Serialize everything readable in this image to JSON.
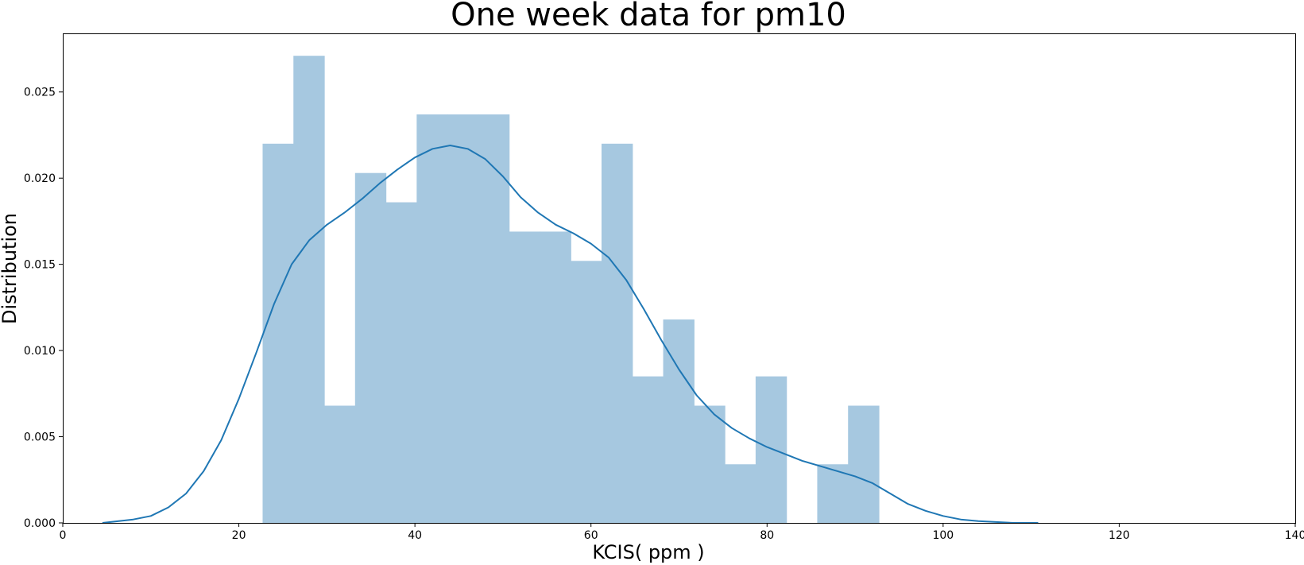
{
  "chart_data": {
    "type": "bar",
    "title": "One week data for pm10",
    "xlabel": "KCIS( ppm )",
    "ylabel": "Distribution",
    "xlim": [
      0,
      140
    ],
    "ylim": [
      0,
      0.0284
    ],
    "xticks": [
      "0",
      "20",
      "40",
      "60",
      "80",
      "100",
      "120",
      "140"
    ],
    "yticks": [
      "0.000",
      "0.005",
      "0.010",
      "0.015",
      "0.020",
      "0.025"
    ],
    "grid": false,
    "bar_color": "#a6c8e0",
    "line_color": "#1f77b4",
    "histogram": {
      "bin_edges": [
        22.7,
        26.2,
        29.7,
        33.2,
        36.7,
        40.2,
        43.7,
        47.2,
        50.7,
        54.2,
        57.7,
        61.2,
        64.7,
        68.2,
        71.7,
        75.2,
        78.7,
        82.2,
        85.7,
        89.2,
        92.7
      ],
      "density": [
        0.022,
        0.0271,
        0.0068,
        0.0203,
        0.0186,
        0.0237,
        0.0237,
        0.0237,
        0.0169,
        0.0169,
        0.0152,
        0.022,
        0.0085,
        0.0118,
        0.0068,
        0.0034,
        0.0085,
        0.0,
        0.0034,
        0.0068
      ]
    },
    "kde": {
      "x": [
        4.5,
        8,
        10,
        12,
        14,
        16,
        18,
        20,
        22,
        24,
        26,
        28,
        30,
        32,
        34,
        36,
        38,
        40,
        42,
        44,
        46,
        48,
        50,
        52,
        54,
        56,
        58,
        60,
        62,
        64,
        66,
        68,
        70,
        72,
        74,
        76,
        78,
        80,
        82,
        84,
        86,
        88,
        90,
        92,
        94,
        96,
        98,
        100,
        102,
        104,
        106,
        108,
        110.8
      ],
      "y": [
        0.0,
        0.0002,
        0.0004,
        0.0009,
        0.0017,
        0.003,
        0.0048,
        0.0072,
        0.0099,
        0.0127,
        0.015,
        0.0164,
        0.0173,
        0.018,
        0.0188,
        0.0197,
        0.0205,
        0.0212,
        0.0217,
        0.0219,
        0.0217,
        0.0211,
        0.0201,
        0.0189,
        0.018,
        0.0173,
        0.0168,
        0.0162,
        0.0154,
        0.0141,
        0.0124,
        0.0106,
        0.0089,
        0.0074,
        0.0063,
        0.0055,
        0.0049,
        0.0044,
        0.004,
        0.0036,
        0.0033,
        0.003,
        0.0027,
        0.0023,
        0.0017,
        0.0011,
        0.0007,
        0.0004,
        0.0002,
        0.0001,
        5e-05,
        0.0,
        0.0
      ]
    }
  }
}
